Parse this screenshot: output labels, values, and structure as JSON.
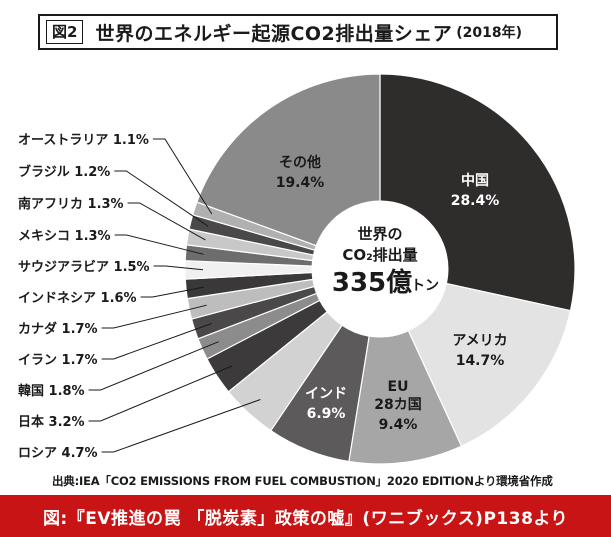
{
  "header": {
    "figure_label": "図2",
    "title": "世界のエネルギー起源CO2排出量シェア",
    "year": "(2018年)"
  },
  "chart_data": {
    "type": "pie",
    "title": "世界のエネルギー起源CO2排出量シェア(2018年)",
    "center_text": {
      "line1": "世界の",
      "line2": "CO₂排出量",
      "value": "335億",
      "unit": "トン"
    },
    "slices": [
      {
        "label": "中国",
        "value": 28.4,
        "display": "28.4%",
        "color": "#2f2c2c",
        "text_color": "#ffffff"
      },
      {
        "label": "アメリカ",
        "value": 14.7,
        "display": "14.7%",
        "color": "#e3e3e3",
        "text_color": "#1a1a1a"
      },
      {
        "label": "EU\n28カ国",
        "value": 9.4,
        "display": "9.4%",
        "color": "#a6a6a6",
        "text_color": "#1a1a1a"
      },
      {
        "label": "インド",
        "value": 6.9,
        "display": "6.9%",
        "color": "#5c5a5a",
        "text_color": "#ffffff"
      },
      {
        "label": "ロシア",
        "value": 4.7,
        "display": "4.7%",
        "color": "#d2d2d2",
        "text_color": "#1a1a1a"
      },
      {
        "label": "日本",
        "value": 3.2,
        "display": "3.2%",
        "color": "#3c3a3a",
        "text_color": "#1a1a1a"
      },
      {
        "label": "韓国",
        "value": 1.8,
        "display": "1.8%",
        "color": "#8c8c8c",
        "text_color": "#1a1a1a"
      },
      {
        "label": "イラン",
        "value": 1.7,
        "display": "1.7%",
        "color": "#4a4848",
        "text_color": "#1a1a1a"
      },
      {
        "label": "カナダ",
        "value": 1.7,
        "display": "1.7%",
        "color": "#bdbdbd",
        "text_color": "#1a1a1a"
      },
      {
        "label": "インドネシア",
        "value": 1.6,
        "display": "1.6%",
        "color": "#3a3838",
        "text_color": "#1a1a1a"
      },
      {
        "label": "サウジアラビア",
        "value": 1.5,
        "display": "1.5%",
        "color": "#f0f0f0",
        "text_color": "#1a1a1a"
      },
      {
        "label": "メキシコ",
        "value": 1.3,
        "display": "1.3%",
        "color": "#6e6c6c",
        "text_color": "#1a1a1a"
      },
      {
        "label": "南アフリカ",
        "value": 1.3,
        "display": "1.3%",
        "color": "#c8c8c8",
        "text_color": "#1a1a1a"
      },
      {
        "label": "ブラジル",
        "value": 1.2,
        "display": "1.2%",
        "color": "#4a4848",
        "text_color": "#1a1a1a"
      },
      {
        "label": "オーストラリア",
        "value": 1.1,
        "display": "1.1%",
        "color": "#b0b0b0",
        "text_color": "#1a1a1a"
      },
      {
        "label": "その他",
        "value": 19.4,
        "display": "19.4%",
        "color": "#8a8a8a",
        "text_color": "#1a1a1a"
      }
    ]
  },
  "source_note": "出典:IEA「CO2 EMISSIONS FROM FUEL COMBUSTION」2020 EDITIONより環境省作成",
  "footer_text": "図:『EV推進の罠 「脱炭素」政策の嘘』(ワニブックス)P138より"
}
